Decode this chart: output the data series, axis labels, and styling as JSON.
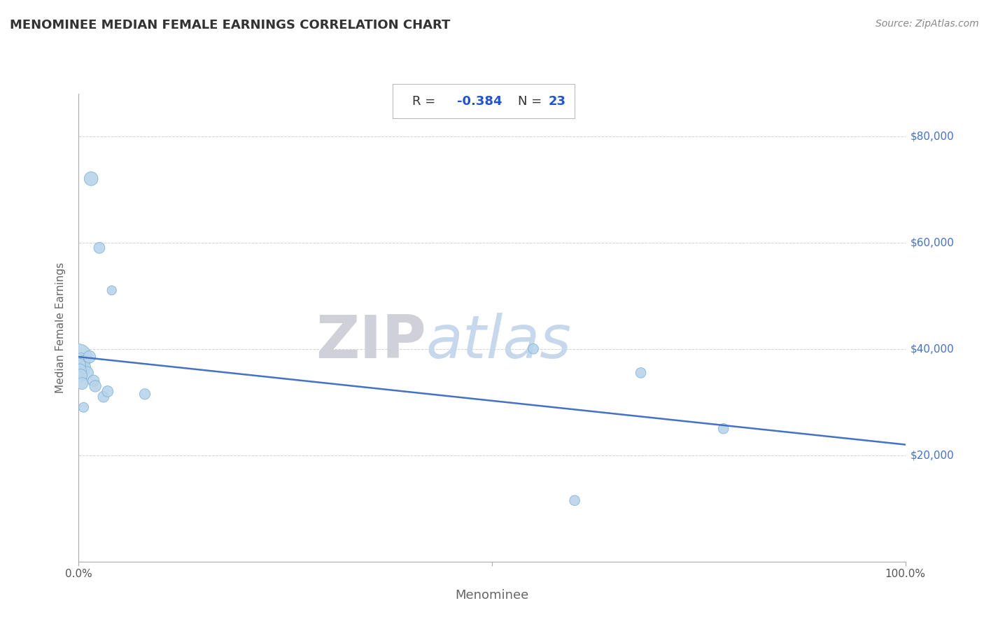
{
  "title": "MENOMINEE MEDIAN FEMALE EARNINGS CORRELATION CHART",
  "source": "Source: ZipAtlas.com",
  "xlabel": "Menominee",
  "ylabel": "Median Female Earnings",
  "R": -0.384,
  "N": 23,
  "x_points": [
    1.5,
    2.5,
    4.0,
    0.0,
    0.3,
    0.5,
    0.7,
    1.0,
    1.3,
    1.8,
    2.0,
    3.0,
    3.5,
    0.05,
    0.15,
    0.25,
    0.4,
    0.6,
    8.0,
    55.0,
    68.0,
    78.0,
    60.0
  ],
  "y_points": [
    72000,
    59000,
    51000,
    38500,
    38000,
    37500,
    36500,
    35500,
    38500,
    34000,
    33000,
    31000,
    32000,
    37000,
    36000,
    35000,
    33500,
    29000,
    31500,
    40000,
    35500,
    25000,
    11500
  ],
  "sizes": [
    200,
    130,
    90,
    700,
    180,
    180,
    170,
    170,
    160,
    140,
    140,
    130,
    130,
    180,
    170,
    170,
    150,
    100,
    120,
    110,
    110,
    110,
    110
  ],
  "point_color": "#b8d4ea",
  "point_edge_color": "#7aafd4",
  "line_color": "#4472c4",
  "line_x": [
    0,
    100
  ],
  "line_y": [
    38500,
    22000
  ],
  "xlim": [
    0,
    100
  ],
  "ylim": [
    0,
    88000
  ],
  "yticks": [
    20000,
    40000,
    60000,
    80000
  ],
  "ytick_labels": [
    "$20,000",
    "$40,000",
    "$60,000",
    "$80,000"
  ],
  "xticks": [
    0,
    50,
    100
  ],
  "xtick_labels": [
    "0.0%",
    "",
    "100.0%"
  ],
  "grid_color": "#cccccc",
  "background_color": "#ffffff",
  "title_color": "#333333",
  "axis_label_color": "#666666",
  "R_label_color": "#2255cc",
  "N_label_color": "#2255cc",
  "right_label_color": "#4472c4",
  "watermark_zip": "ZIP",
  "watermark_atlas": "atlas",
  "watermark_zip_color": "#d0d0d8",
  "watermark_atlas_color": "#c8d8ec"
}
